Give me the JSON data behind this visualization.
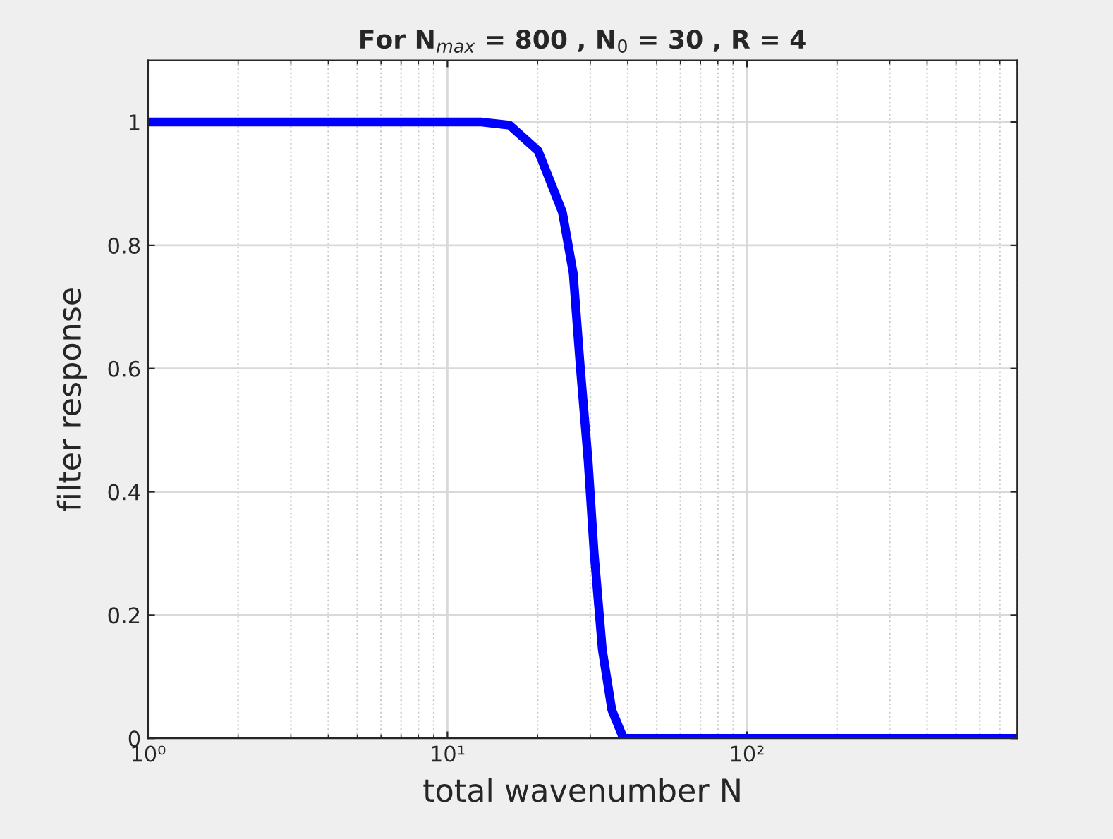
{
  "chart_data": {
    "type": "line",
    "title": "For N$_{max}$ = 800 , N$_{0}$ = 30 , R = 4",
    "xlabel": "total wavenumber N",
    "ylabel": "filter response",
    "x": [
      1,
      5,
      10,
      13,
      16.1,
      20.1,
      24.2,
      26.3,
      27.8,
      29.5,
      30.9,
      32.9,
      35.4,
      38.7,
      100,
      800
    ],
    "series": [
      {
        "color": "#0000ff",
        "values": [
          1,
          1,
          1,
          1,
          0.995,
          0.953,
          0.854,
          0.755,
          0.6,
          0.45,
          0.3,
          0.144,
          0.046,
          0,
          0,
          0
        ]
      }
    ],
    "log": "x",
    "xlim": [
      1,
      800
    ],
    "ylim": [
      0,
      1.1
    ],
    "xticks": [
      {
        "value": 1,
        "label": "10⁰"
      },
      {
        "value": 10,
        "label": "10¹"
      },
      {
        "value": 100,
        "label": "10²"
      }
    ],
    "yticks": [
      0,
      0.2,
      0.4,
      0.6,
      0.8,
      1
    ],
    "grid": true,
    "marker": "none",
    "line_style": "solid"
  }
}
